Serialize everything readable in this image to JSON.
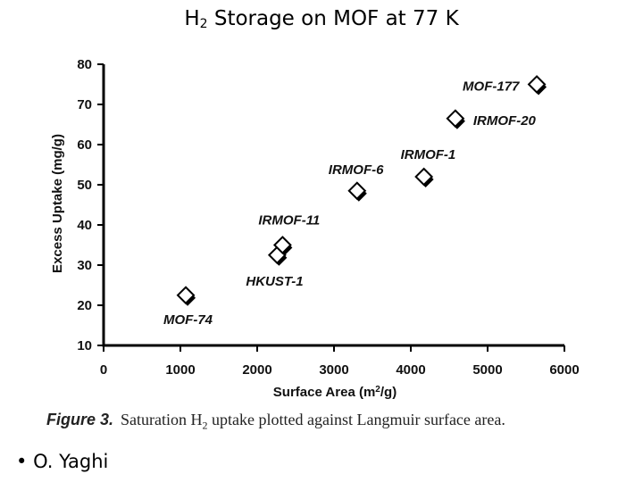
{
  "slide": {
    "title_prefix": "H",
    "title_sub": "2",
    "title_rest": " Storage on MOF at 77 K",
    "bullet_mark": "•",
    "bullet_text": "O. Yaghi"
  },
  "caption": {
    "lead": "Figure 3.",
    "text_a": "Saturation H",
    "text_sub": "2",
    "text_b": " uptake plotted against Langmuir surface area."
  },
  "chart_data": {
    "type": "scatter",
    "xlabel_main": "Surface Area (m",
    "xlabel_sup": "2",
    "xlabel_end": "/g)",
    "ylabel": "Excess Uptake (mg/g)",
    "xlim": [
      0,
      6000
    ],
    "ylim": [
      10,
      80
    ],
    "xticks": [
      0,
      1000,
      2000,
      3000,
      4000,
      5000,
      6000
    ],
    "yticks": [
      10,
      20,
      30,
      40,
      50,
      60,
      70,
      80
    ],
    "grid": false,
    "marker": "diamond",
    "marker_color": "#000000",
    "points": [
      {
        "label": "MOF-74",
        "x": 1070,
        "y": 22.5
      },
      {
        "label": "HKUST-1",
        "x": 2260,
        "y": 32.5
      },
      {
        "label": "IRMOF-11",
        "x": 2330,
        "y": 35
      },
      {
        "label": "IRMOF-6",
        "x": 3300,
        "y": 48.5
      },
      {
        "label": "IRMOF-1",
        "x": 4170,
        "y": 52
      },
      {
        "label": "IRMOF-20",
        "x": 4580,
        "y": 66.5
      },
      {
        "label": "MOF-177",
        "x": 5640,
        "y": 75
      }
    ]
  }
}
